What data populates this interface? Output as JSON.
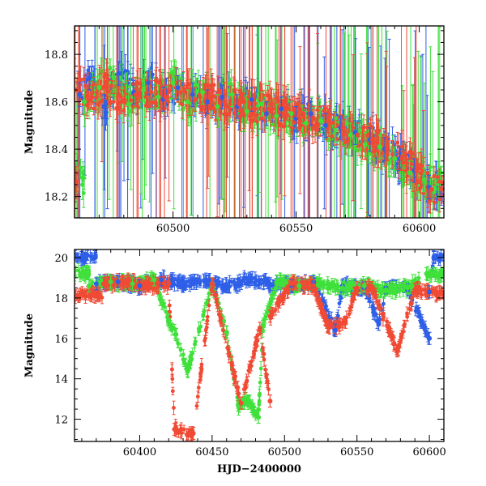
{
  "chart_data": [
    {
      "type": "scatter",
      "panel": "top",
      "title": "",
      "xlabel": "",
      "ylabel": "Magnitude",
      "xlim": [
        60460,
        60610
      ],
      "ylim": [
        18.92,
        18.11
      ],
      "y_inverted": true,
      "x_ticks": [
        60500,
        60550,
        60600
      ],
      "y_ticks": [
        18.2,
        18.4,
        18.6,
        18.8
      ],
      "series": [
        {
          "color": "#2e5fe8",
          "points": [
            [
              60462,
              18.63
            ],
            [
              60466,
              18.7
            ],
            [
              60472,
              18.58
            ],
            [
              60478,
              18.72
            ],
            [
              60484,
              18.64
            ],
            [
              60490,
              18.68
            ],
            [
              60496,
              18.61
            ],
            [
              60502,
              18.66
            ],
            [
              60508,
              18.63
            ],
            [
              60514,
              18.6
            ],
            [
              60520,
              18.62
            ],
            [
              60526,
              18.58
            ],
            [
              60532,
              18.61
            ],
            [
              60538,
              18.55
            ],
            [
              60544,
              18.57
            ],
            [
              60550,
              18.53
            ],
            [
              60556,
              18.55
            ],
            [
              60562,
              18.5
            ],
            [
              60568,
              18.49
            ],
            [
              60574,
              18.47
            ],
            [
              60580,
              18.44
            ],
            [
              60586,
              18.4
            ],
            [
              60592,
              18.36
            ],
            [
              60598,
              18.31
            ],
            [
              60604,
              18.24
            ]
          ]
        },
        {
          "color": "#3fe03a",
          "points": [
            [
              60464,
              18.6
            ],
            [
              60470,
              18.66
            ],
            [
              60476,
              18.7
            ],
            [
              60482,
              18.59
            ],
            [
              60488,
              18.65
            ],
            [
              60494,
              18.62
            ],
            [
              60500,
              18.68
            ],
            [
              60506,
              18.6
            ],
            [
              60512,
              18.64
            ],
            [
              60518,
              18.58
            ],
            [
              60524,
              18.63
            ],
            [
              60530,
              18.56
            ],
            [
              60536,
              18.59
            ],
            [
              60542,
              18.54
            ],
            [
              60548,
              18.55
            ],
            [
              60554,
              18.51
            ],
            [
              60560,
              18.52
            ],
            [
              60566,
              18.48
            ],
            [
              60572,
              18.46
            ],
            [
              60578,
              18.42
            ],
            [
              60584,
              18.41
            ],
            [
              60590,
              18.36
            ],
            [
              60596,
              18.3
            ],
            [
              60602,
              18.27
            ]
          ]
        },
        {
          "color": "#f04a35",
          "points": [
            [
              60461,
              18.65
            ],
            [
              60467,
              18.62
            ],
            [
              60473,
              18.66
            ],
            [
              60479,
              18.6
            ],
            [
              60485,
              18.63
            ],
            [
              60491,
              18.64
            ],
            [
              60497,
              18.62
            ],
            [
              60503,
              18.64
            ],
            [
              60509,
              18.61
            ],
            [
              60515,
              18.62
            ],
            [
              60521,
              18.6
            ],
            [
              60527,
              18.59
            ],
            [
              60533,
              18.57
            ],
            [
              60539,
              18.57
            ],
            [
              60545,
              18.55
            ],
            [
              60551,
              18.54
            ],
            [
              60557,
              18.53
            ],
            [
              60563,
              18.52
            ],
            [
              60569,
              18.49
            ],
            [
              60575,
              18.46
            ],
            [
              60581,
              18.44
            ],
            [
              60587,
              18.4
            ],
            [
              60593,
              18.36
            ],
            [
              60599,
              18.31
            ],
            [
              60605,
              18.23
            ]
          ]
        }
      ]
    },
    {
      "type": "scatter",
      "panel": "bottom",
      "title": "",
      "xlabel": "HJD−2400000",
      "ylabel": "Magnitude",
      "xlim": [
        60355,
        60610
      ],
      "ylim": [
        20.4,
        10.9
      ],
      "y_inverted": true,
      "x_ticks": [
        60400,
        60450,
        60500,
        60550,
        60600
      ],
      "y_ticks": [
        12,
        14,
        16,
        18,
        20
      ],
      "series": [
        {
          "color": "#2e5fe8",
          "points": [
            [
              60370,
              18.7
            ],
            [
              60385,
              18.8
            ],
            [
              60400,
              18.6
            ],
            [
              60415,
              18.9
            ],
            [
              60430,
              18.7
            ],
            [
              60445,
              18.8
            ],
            [
              60460,
              18.6
            ],
            [
              60475,
              18.9
            ],
            [
              60490,
              18.7
            ],
            [
              60505,
              18.6
            ],
            [
              60520,
              18.8
            ],
            [
              60535,
              16.4
            ],
            [
              60540,
              18.6
            ],
            [
              60555,
              18.5
            ],
            [
              60565,
              16.7
            ],
            [
              60570,
              18.5
            ],
            [
              60585,
              18.4
            ],
            [
              60600,
              16.0
            ],
            [
              60600,
              18.3
            ],
            [
              60603,
              20.0
            ]
          ]
        },
        {
          "color": "#3fe03a",
          "points": [
            [
              60365,
              18.6
            ],
            [
              60380,
              18.8
            ],
            [
              60395,
              18.7
            ],
            [
              60410,
              18.9
            ],
            [
              60420,
              16.9
            ],
            [
              60425,
              16.2
            ],
            [
              60433,
              14.4
            ],
            [
              60450,
              18.7
            ],
            [
              60460,
              16.3
            ],
            [
              60468,
              12.7
            ],
            [
              60475,
              12.9
            ],
            [
              60482,
              12.1
            ],
            [
              60485,
              16.6
            ],
            [
              60495,
              18.8
            ],
            [
              60510,
              18.6
            ],
            [
              60525,
              18.7
            ],
            [
              60540,
              18.5
            ],
            [
              60555,
              18.6
            ],
            [
              60570,
              18.4
            ],
            [
              60585,
              18.5
            ],
            [
              60598,
              19.2
            ]
          ]
        },
        {
          "color": "#f04a35",
          "points": [
            [
              60375,
              18.7
            ],
            [
              60390,
              18.8
            ],
            [
              60405,
              18.6
            ],
            [
              60420,
              18.7
            ],
            [
              60424,
              11.5
            ],
            [
              60437,
              11.3
            ],
            [
              60450,
              18.7
            ],
            [
              60470,
              12.8
            ],
            [
              60483,
              16.5
            ],
            [
              60490,
              12.9
            ],
            [
              60490,
              17.1
            ],
            [
              60505,
              18.7
            ],
            [
              60520,
              18.6
            ],
            [
              60530,
              16.6
            ],
            [
              60542,
              16.8
            ],
            [
              60550,
              18.5
            ],
            [
              60560,
              18.5
            ],
            [
              60578,
              15.4
            ],
            [
              60590,
              18.4
            ],
            [
              60605,
              18.2
            ]
          ]
        }
      ]
    }
  ]
}
